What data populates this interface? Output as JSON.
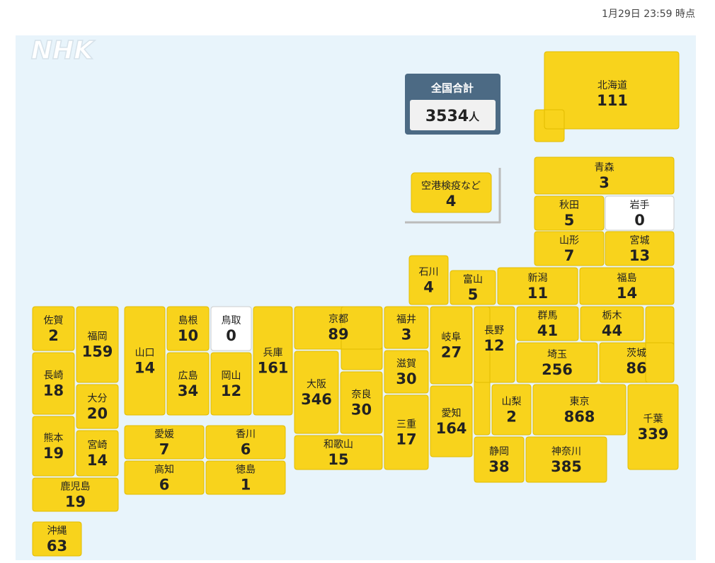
{
  "timestamp": "1月29日 23:59 時点",
  "logo": "NHK",
  "total": {
    "label": "全国合計",
    "value": 3534,
    "unit": "人"
  },
  "airport": {
    "name": "空港検疫など",
    "value": 4
  },
  "prefectures": [
    {
      "name": "北海道",
      "value": 111
    },
    {
      "name": "青森",
      "value": 3
    },
    {
      "name": "秋田",
      "value": 5
    },
    {
      "name": "岩手",
      "value": 0
    },
    {
      "name": "山形",
      "value": 7
    },
    {
      "name": "宮城",
      "value": 13
    },
    {
      "name": "石川",
      "value": 4
    },
    {
      "name": "富山",
      "value": 5
    },
    {
      "name": "新潟",
      "value": 11
    },
    {
      "name": "福島",
      "value": 14
    },
    {
      "name": "佐賀",
      "value": 2
    },
    {
      "name": "福岡",
      "value": 159
    },
    {
      "name": "長崎",
      "value": 18
    },
    {
      "name": "大分",
      "value": 20
    },
    {
      "name": "熊本",
      "value": 19
    },
    {
      "name": "宮崎",
      "value": 14
    },
    {
      "name": "鹿児島",
      "value": 19
    },
    {
      "name": "沖縄",
      "value": 63
    },
    {
      "name": "山口",
      "value": 14
    },
    {
      "name": "島根",
      "value": 10
    },
    {
      "name": "鳥取",
      "value": 0
    },
    {
      "name": "広島",
      "value": 34
    },
    {
      "name": "岡山",
      "value": 12
    },
    {
      "name": "兵庫",
      "value": 161
    },
    {
      "name": "愛媛",
      "value": 7
    },
    {
      "name": "香川",
      "value": 6
    },
    {
      "name": "高知",
      "value": 6
    },
    {
      "name": "徳島",
      "value": 1
    },
    {
      "name": "京都",
      "value": 89
    },
    {
      "name": "大阪",
      "value": 346
    },
    {
      "name": "奈良",
      "value": 30
    },
    {
      "name": "和歌山",
      "value": 15
    },
    {
      "name": "福井",
      "value": 3
    },
    {
      "name": "滋賀",
      "value": 30
    },
    {
      "name": "三重",
      "value": 17
    },
    {
      "name": "岐阜",
      "value": 27
    },
    {
      "name": "愛知",
      "value": 164
    },
    {
      "name": "長野",
      "value": 12
    },
    {
      "name": "群馬",
      "value": 41
    },
    {
      "name": "栃木",
      "value": 44
    },
    {
      "name": "茨城",
      "value": 86
    },
    {
      "name": "埼玉",
      "value": 256
    },
    {
      "name": "山梨",
      "value": 2
    },
    {
      "name": "東京",
      "value": 868
    },
    {
      "name": "千葉",
      "value": 339
    },
    {
      "name": "静岡",
      "value": 38
    },
    {
      "name": "神奈川",
      "value": 385
    }
  ]
}
